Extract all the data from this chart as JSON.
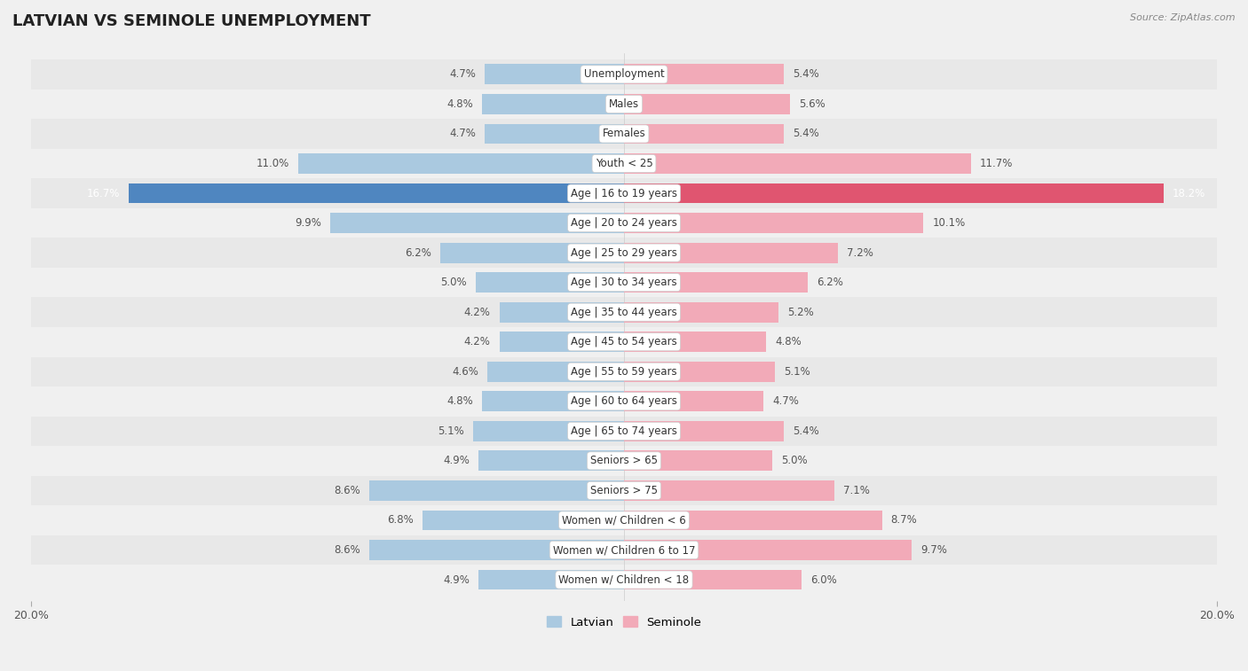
{
  "title": "LATVIAN VS SEMINOLE UNEMPLOYMENT",
  "source": "Source: ZipAtlas.com",
  "categories": [
    "Unemployment",
    "Males",
    "Females",
    "Youth < 25",
    "Age | 16 to 19 years",
    "Age | 20 to 24 years",
    "Age | 25 to 29 years",
    "Age | 30 to 34 years",
    "Age | 35 to 44 years",
    "Age | 45 to 54 years",
    "Age | 55 to 59 years",
    "Age | 60 to 64 years",
    "Age | 65 to 74 years",
    "Seniors > 65",
    "Seniors > 75",
    "Women w/ Children < 6",
    "Women w/ Children 6 to 17",
    "Women w/ Children < 18"
  ],
  "latvian": [
    4.7,
    4.8,
    4.7,
    11.0,
    16.7,
    9.9,
    6.2,
    5.0,
    4.2,
    4.2,
    4.6,
    4.8,
    5.1,
    4.9,
    8.6,
    6.8,
    8.6,
    4.9
  ],
  "seminole": [
    5.4,
    5.6,
    5.4,
    11.7,
    18.2,
    10.1,
    7.2,
    6.2,
    5.2,
    4.8,
    5.1,
    4.7,
    5.4,
    5.0,
    7.1,
    8.7,
    9.7,
    6.0
  ],
  "latvian_color": "#aac9e0",
  "seminole_color": "#f2aab8",
  "highlight_latvian_color": "#4f86c0",
  "highlight_seminole_color": "#e05570",
  "axis_limit": 20.0,
  "background_color": "#f0f0f0",
  "row_even_color": "#e8e8e8",
  "row_odd_color": "#f0f0f0",
  "label_bg_color": "#ffffff",
  "legend_latvian": "Latvian",
  "legend_seminole": "Seminole",
  "title_fontsize": 13,
  "label_fontsize": 8.5,
  "value_fontsize": 8.5
}
